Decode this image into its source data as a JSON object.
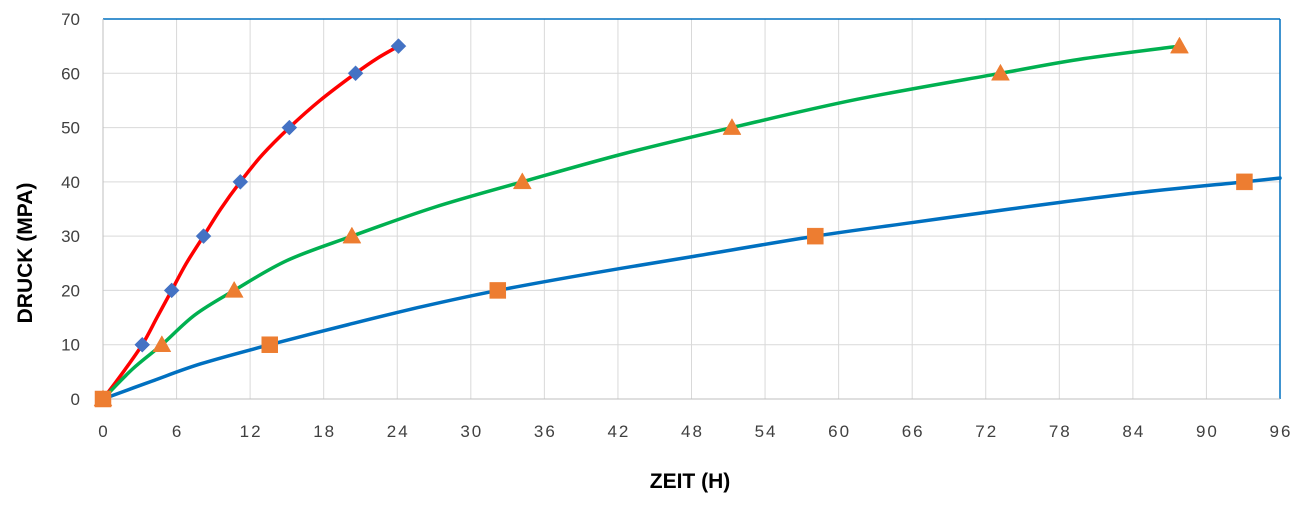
{
  "chart_data": {
    "type": "line",
    "title": "",
    "xlabel": "ZEIT (H)",
    "ylabel": "DRUCK (MPA)",
    "xlim": [
      0,
      96
    ],
    "ylim": [
      0,
      70
    ],
    "xticks": [
      0,
      6,
      12,
      18,
      24,
      30,
      36,
      42,
      48,
      54,
      60,
      66,
      72,
      78,
      84,
      90,
      96
    ],
    "yticks": [
      0,
      10,
      20,
      30,
      40,
      50,
      60,
      70
    ],
    "grid": true,
    "legend": "none",
    "series": [
      {
        "line_color": "#ff0000",
        "marker": "diamond",
        "marker_color": "#4472c4",
        "curve": [
          [
            0,
            0
          ],
          [
            1.5,
            4.5
          ],
          [
            3.2,
            10
          ],
          [
            4.4,
            15
          ],
          [
            5.6,
            20
          ],
          [
            6.8,
            25
          ],
          [
            8.2,
            30
          ],
          [
            9.6,
            35
          ],
          [
            11.2,
            40
          ],
          [
            13,
            45
          ],
          [
            15.2,
            50
          ],
          [
            17.7,
            55
          ],
          [
            20.6,
            60
          ],
          [
            22.4,
            62.8
          ],
          [
            24.1,
            65
          ]
        ],
        "points": [
          [
            0,
            0
          ],
          [
            3.2,
            10
          ],
          [
            5.6,
            20
          ],
          [
            8.2,
            30
          ],
          [
            11.2,
            40
          ],
          [
            15.2,
            50
          ],
          [
            20.6,
            60
          ],
          [
            24.1,
            65
          ]
        ]
      },
      {
        "line_color": "#00b050",
        "marker": "triangle",
        "marker_color": "#ed7d31",
        "curve": [
          [
            0,
            0
          ],
          [
            2.4,
            5.5
          ],
          [
            4.8,
            10
          ],
          [
            7.5,
            15.5
          ],
          [
            10.7,
            20
          ],
          [
            15,
            25.5
          ],
          [
            20.3,
            30
          ],
          [
            27,
            35.3
          ],
          [
            34.2,
            40
          ],
          [
            42.5,
            45.2
          ],
          [
            51.3,
            50
          ],
          [
            61.5,
            55.2
          ],
          [
            73.2,
            60
          ],
          [
            80,
            62.7
          ],
          [
            87.8,
            65
          ]
        ],
        "points": [
          [
            0,
            0
          ],
          [
            4.8,
            10
          ],
          [
            10.7,
            20
          ],
          [
            20.3,
            30
          ],
          [
            34.2,
            40
          ],
          [
            51.3,
            50
          ],
          [
            73.2,
            60
          ],
          [
            87.8,
            65
          ]
        ]
      },
      {
        "line_color": "#0070c0",
        "marker": "square",
        "marker_color": "#ed7d31",
        "curve": [
          [
            0,
            0
          ],
          [
            4,
            3.3
          ],
          [
            8,
            6.5
          ],
          [
            13.6,
            10
          ],
          [
            20,
            13.7
          ],
          [
            26,
            17
          ],
          [
            32.2,
            20
          ],
          [
            40,
            23.2
          ],
          [
            48,
            26.2
          ],
          [
            58.1,
            30
          ],
          [
            66,
            32.5
          ],
          [
            74,
            35
          ],
          [
            84,
            37.9
          ],
          [
            93.1,
            40
          ],
          [
            96,
            40.7
          ]
        ],
        "points": [
          [
            0,
            0
          ],
          [
            13.6,
            10
          ],
          [
            32.2,
            20
          ],
          [
            58.1,
            30
          ],
          [
            93.1,
            40
          ]
        ]
      }
    ]
  }
}
